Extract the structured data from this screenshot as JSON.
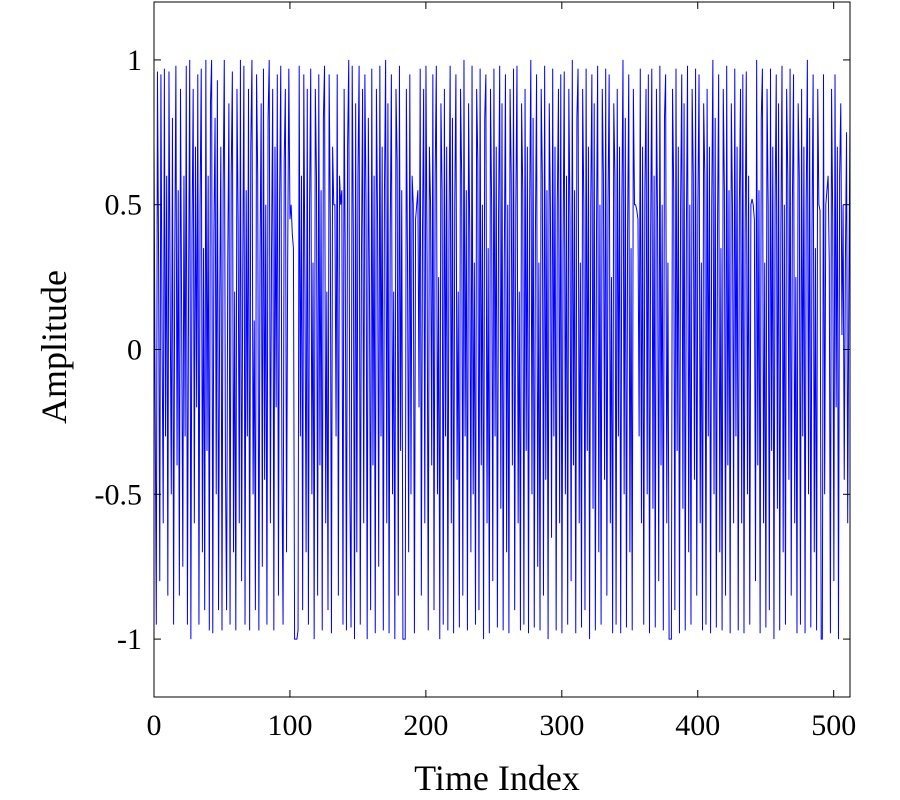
{
  "chart_data": {
    "type": "line",
    "title": "",
    "xlabel": "Time Index",
    "ylabel": "Amplitude",
    "xlim": [
      0,
      512
    ],
    "ylim": [
      -1.2,
      1.2
    ],
    "grid": false,
    "series_color": "#0000ff",
    "xticks": [
      0,
      100,
      200,
      300,
      400,
      500
    ],
    "xtick_labels": [
      "0",
      "100",
      "200",
      "300",
      "400",
      "500"
    ],
    "yticks": [
      1,
      0.5,
      0,
      -0.5,
      -1
    ],
    "ytick_labels": [
      "1",
      "0.5",
      "0",
      "-0.5",
      "-1"
    ],
    "series": [
      {
        "values": [
          0.72,
          -0.2,
          -0.95,
          0.96,
          0.3,
          -0.8,
          0.95,
          0.05,
          -0.6,
          0.97,
          -0.3,
          0.6,
          -0.85,
          0.96,
          0.2,
          -0.5,
          0.8,
          -0.95,
          0.3,
          0.98,
          -0.4,
          0.55,
          -0.85,
          0.9,
          0.1,
          -0.75,
          0.6,
          -0.3,
          0.98,
          -0.95,
          0.2,
          1.0,
          -1.0,
          0.4,
          0.9,
          -0.6,
          0.7,
          -0.2,
          0.95,
          -0.95,
          0.5,
          0.97,
          -0.7,
          0.35,
          -0.9,
          1.0,
          -0.35,
          0.6,
          -0.97,
          0.85,
          1.0,
          -0.98,
          0.4,
          0.8,
          -0.5,
          0.93,
          -0.9,
          0.15,
          0.7,
          -0.97,
          0.55,
          1.0,
          -0.4,
          -0.9,
          0.3,
          0.85,
          -0.95,
          0.6,
          0.96,
          -0.7,
          0.2,
          -0.97,
          0.9,
          0.45,
          -0.6,
          1.0,
          -0.8,
          0.25,
          0.98,
          -0.95,
          0.55,
          -0.3,
          0.9,
          -0.97,
          0.7,
          1.0,
          -0.5,
          0.1,
          -0.9,
          0.95,
          0.6,
          -0.97,
          0.3,
          0.85,
          -0.75,
          0.97,
          -0.45,
          0.5,
          -0.95,
          0.8,
          1.0,
          -0.6,
          0.35,
          0.9,
          -0.97,
          0.7,
          -0.2,
          0.95,
          -0.85,
          0.5,
          0.98,
          -0.4,
          -0.95,
          0.65,
          0.9,
          -0.7,
          0.3,
          0.97,
          0.45,
          0.5,
          0.4,
          0.35,
          -1.0,
          -1.0,
          -1.0,
          -0.97,
          0.98,
          -0.3,
          0.6,
          -0.9,
          0.95,
          0.2,
          -0.7,
          0.9,
          -0.95,
          0.5,
          0.97,
          -0.5,
          0.3,
          -1.0,
          0.9,
          0.6,
          -0.85,
          0.95,
          -0.4,
          0.55,
          -0.97,
          0.8,
          0.98,
          -0.6,
          0.2,
          -0.9,
          0.95,
          0.45,
          -0.98,
          0.7,
          0.5,
          0.5,
          -0.3,
          0.95,
          -0.85,
          0.6,
          0.5,
          0.55,
          -0.95,
          0.9,
          0.3,
          -0.97,
          0.7,
          1.0,
          -0.5,
          -0.96,
          0.98,
          0.4,
          -1.0,
          0.85,
          -0.7,
          0.6,
          0.98,
          -0.95,
          0.3,
          0.9,
          -0.6,
          0.95,
          0.5,
          -1.0,
          0.8,
          0.2,
          -0.9,
          0.97,
          -0.4,
          0.6,
          -0.98,
          0.9,
          0.45,
          -0.75,
          0.98,
          -0.3,
          0.7,
          -0.97,
          0.55,
          1.0,
          -0.6,
          0.85,
          -0.98,
          0.4,
          0.95,
          -0.5,
          0.2,
          -1.0,
          0.9,
          0.65,
          -0.85,
          0.98,
          -0.35,
          0.55,
          -1.0,
          -1.0,
          -1.0,
          0.9,
          0.3,
          -0.7,
          0.95,
          -0.5,
          0.6,
          0.5,
          -0.98,
          0.45,
          0.5,
          0.55,
          -0.2,
          0.97,
          -0.85,
          0.4,
          0.9,
          -0.6,
          0.98,
          0.3,
          -0.97,
          0.7,
          0.5,
          -0.4,
          0.95,
          -0.9,
          0.6,
          0.98,
          -0.5,
          0.25,
          -1.0,
          0.85,
          0.55,
          -0.95,
          0.9,
          -0.3,
          0.7,
          -0.97,
          0.4,
          0.98,
          -0.6,
          0.8,
          -0.98,
          0.5,
          0.95,
          -0.45,
          0.2,
          -0.96,
          0.9,
          0.6,
          -0.85,
          1.0,
          -0.3,
          0.55,
          -0.97,
          0.85,
          0.4,
          -0.7,
          0.98,
          -0.5,
          0.3,
          -0.95,
          0.9,
          0.65,
          -0.9,
          0.97,
          -0.4,
          0.5,
          -1.0,
          0.8,
          0.95,
          -0.6,
          0.35,
          -0.98,
          0.9,
          0.5,
          -0.8,
          0.97,
          -0.3,
          0.7,
          -0.96,
          0.45,
          0.98,
          -0.55,
          0.85,
          -0.97,
          0.3,
          0.95,
          -0.7,
          0.5,
          -0.98,
          0.9,
          0.6,
          -0.4,
          0.97,
          -0.9,
          0.5,
          0.98,
          -0.6,
          0.2,
          -0.97,
          0.85,
          0.55,
          -0.95,
          0.9,
          -0.35,
          0.7,
          -0.98,
          0.5,
          1.0,
          -0.5,
          0.8,
          -0.96,
          0.4,
          0.95,
          -0.75,
          0.3,
          -0.97,
          0.9,
          0.6,
          -0.85,
          0.98,
          -0.45,
          0.55,
          -1.0,
          0.85,
          0.5,
          -0.65,
          0.97,
          -0.3,
          0.7,
          -0.97,
          0.5,
          0.9,
          -0.6,
          0.95,
          -0.98,
          0.35,
          0.96,
          -0.5,
          0.6,
          -0.95,
          0.9,
          0.45,
          -0.8,
          1.0,
          -0.4,
          0.55,
          -0.98,
          0.8,
          0.97,
          -0.6,
          0.3,
          -0.96,
          0.9,
          0.5,
          -0.9,
          0.97,
          -0.35,
          0.7,
          -1.0,
          0.5,
          0.95,
          -0.55,
          0.85,
          -0.97,
          0.4,
          0.98,
          -0.7,
          0.5,
          -0.95,
          0.9,
          0.6,
          -0.45,
          0.97,
          -0.85,
          0.5,
          0.95,
          -0.6,
          0.25,
          -0.98,
          0.85,
          0.6,
          -0.95,
          0.9,
          -0.3,
          0.7,
          -0.98,
          0.5,
          1.0,
          -0.5,
          0.8,
          -0.96,
          0.4,
          0.95,
          -0.7,
          0.35,
          -0.97,
          0.9,
          0.5,
          0.5,
          0.48,
          0.45,
          -0.3,
          0.97,
          -0.6,
          0.7,
          -0.95,
          0.55,
          0.9,
          -0.5,
          0.95,
          -0.98,
          0.4,
          0.97,
          -0.55,
          0.6,
          -0.96,
          0.9,
          0.45,
          -0.8,
          0.98,
          -0.4,
          0.5,
          -0.97,
          0.8,
          0.95,
          -0.6,
          0.3,
          -1.0,
          -1.0,
          -1.0,
          0.9,
          0.55,
          -0.9,
          0.97,
          -0.35,
          0.7,
          -0.98,
          0.5,
          0.95,
          -0.55,
          0.85,
          -0.97,
          0.4,
          0.98,
          -0.7,
          0.5,
          -0.95,
          0.9,
          0.6,
          -0.45,
          0.97,
          -0.85,
          0.5,
          0.95,
          -0.6,
          0.3,
          -0.97,
          0.85,
          0.6,
          -0.95,
          0.9,
          -0.3,
          0.7,
          -0.98,
          0.5,
          1.0,
          -0.5,
          0.8,
          -0.96,
          0.4,
          0.95,
          -0.7,
          0.35,
          -0.97,
          0.9,
          0.55,
          -0.85,
          0.98,
          -0.4,
          0.55,
          -0.98,
          0.85,
          0.5,
          -0.6,
          0.97,
          -0.3,
          0.7,
          -0.97,
          0.5,
          0.9,
          -0.6,
          0.95,
          -0.98,
          0.4,
          0.96,
          -0.5,
          0.6,
          -0.95,
          0.5,
          0.52,
          0.5,
          0.45,
          -0.8,
          1.0,
          -0.4,
          0.55,
          -0.98,
          0.8,
          0.97,
          -0.6,
          0.3,
          -0.96,
          0.9,
          0.5,
          -0.9,
          0.97,
          -0.35,
          0.7,
          -1.0,
          0.5,
          0.95,
          -0.55,
          0.85,
          -0.97,
          0.4,
          0.98,
          -0.7,
          0.5,
          -0.95,
          0.9,
          0.6,
          -0.45,
          0.97,
          -0.85,
          0.5,
          0.95,
          -0.6,
          0.25,
          -0.98,
          0.85,
          0.6,
          -0.95,
          0.9,
          -0.3,
          0.7,
          -0.98,
          0.5,
          1.0,
          -0.5,
          0.8,
          -0.96,
          0.4,
          0.95,
          -0.7,
          0.35,
          -0.97,
          0.9,
          0.5,
          0.48,
          -1.0,
          -1.0,
          0.95,
          -0.5,
          0.5,
          0.55,
          0.6,
          0.3,
          -0.98,
          0.9,
          0.45,
          -0.8,
          0.95,
          -0.2,
          0.7,
          -1.0,
          0.6,
          0.85,
          0.05,
          0.5,
          -0.45,
          0.3,
          0.75,
          -0.6,
          0.2,
          0.8
        ]
      }
    ]
  }
}
